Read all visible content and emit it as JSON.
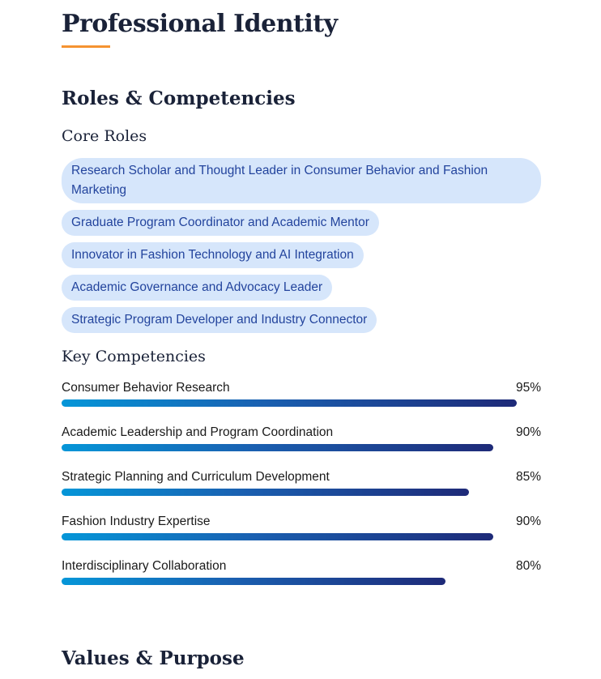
{
  "header": {
    "title": "Professional Identity"
  },
  "roles_section": {
    "heading": "Roles & Competencies",
    "core_roles_heading": "Core Roles",
    "core_roles": [
      "Research Scholar and Thought Leader in Consumer Behavior and Fashion Marketing",
      "Graduate Program Coordinator and Academic Mentor",
      "Innovator in Fashion Technology and AI Integration",
      "Academic Governance and Advocacy Leader",
      "Strategic Program Developer and Industry Connector"
    ],
    "key_competencies_heading": "Key Competencies",
    "competencies": [
      {
        "label": "Consumer Behavior Research",
        "percent_label": "95%",
        "value": 95
      },
      {
        "label": "Academic Leadership and Program Coordination",
        "percent_label": "90%",
        "value": 90
      },
      {
        "label": "Strategic Planning and Curriculum Development",
        "percent_label": "85%",
        "value": 85
      },
      {
        "label": "Fashion Industry Expertise",
        "percent_label": "90%",
        "value": 90
      },
      {
        "label": "Interdisciplinary Collaboration",
        "percent_label": "80%",
        "value": 80
      }
    ]
  },
  "values_section": {
    "heading": "Values & Purpose"
  },
  "colors": {
    "accent_underline": "#f59331",
    "pill_bg": "#d6e6fb",
    "pill_text": "#23449d",
    "bar_start": "#0596d8",
    "bar_end": "#1e2a78"
  }
}
